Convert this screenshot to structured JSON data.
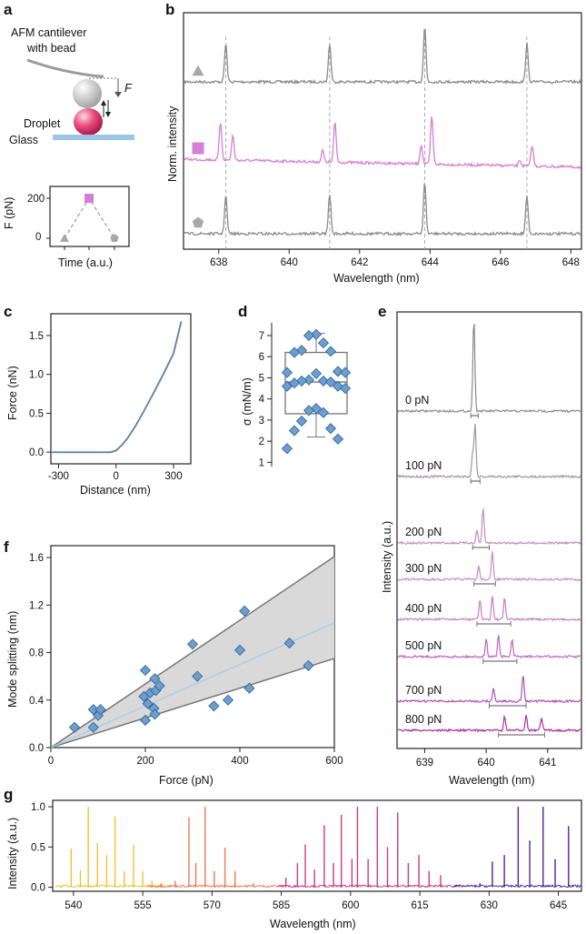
{
  "colors": {
    "gray": "#8a8a8a",
    "magenta": "#d77ed6",
    "bead": "#c9c9c9",
    "droplet": "#e8497a",
    "glass": "#9cc5e8",
    "marker_blue": "#6b9fd0",
    "fit_line": "#a9cdea",
    "band": "#d9d9d9"
  },
  "panel_a": {
    "label": "a",
    "cantilever_label": "AFM cantilever with bead",
    "cantilever_label_line1": "AFM cantilever",
    "cantilever_label_line2": "with bead",
    "force_symbol": "F",
    "droplet_label": "Droplet",
    "glass_label": "Glass",
    "inset": {
      "ylabel": "F (pN)",
      "xlabel": "Time (a.u.)",
      "yticks": [
        "0",
        "200"
      ],
      "points": [
        {
          "marker": "triangle",
          "force": 0
        },
        {
          "marker": "square",
          "force": 200
        },
        {
          "marker": "pentagon",
          "force": 0
        }
      ]
    }
  },
  "panel_b_text": {
    "label": "b",
    "ylabel": "Norm. intensity",
    "xlabel": "Wavelength (nm)",
    "xticks": [
      "638",
      "640",
      "642",
      "644",
      "646",
      "648"
    ]
  },
  "panel_c_text": {
    "label": "c",
    "ylabel": "Force (nN)",
    "xlabel": "Distance (nm)",
    "xticks": [
      "-300",
      "0",
      "300"
    ],
    "yticks": [
      "0.0",
      "0.5",
      "1.0",
      "1.5"
    ]
  },
  "panel_d_text": {
    "label": "d",
    "ylabel": "σ (mN/m)",
    "yticks": [
      "1",
      "2",
      "3",
      "4",
      "5",
      "6",
      "7"
    ]
  },
  "panel_e_text": {
    "label": "e",
    "ylabel": "Intensity (a.u.)",
    "xlabel": "Wavelength (nm)",
    "xticks": [
      "639",
      "640",
      "641"
    ]
  },
  "panel_f_text": {
    "label": "f",
    "ylabel": "Mode splitting (nm)",
    "xlabel": "Force (pN)",
    "xticks": [
      "0",
      "200",
      "400",
      "600"
    ],
    "yticks": [
      "0.0",
      "0.4",
      "0.8",
      "1.2",
      "1.6"
    ]
  },
  "panel_g_text": {
    "label": "g",
    "ylabel": "Intensity (a.u.)",
    "xlabel": "Wavelength (nm)",
    "xticks": [
      "540",
      "555",
      "570",
      "585",
      "600",
      "615",
      "630",
      "645"
    ],
    "yticks": [
      "0.0",
      "0.5",
      "1.0"
    ]
  },
  "chart_data": [
    {
      "panel": "b",
      "type": "line",
      "xlabel": "Wavelength (nm)",
      "ylabel": "Norm. intensity",
      "xlim": [
        637,
        648.3
      ],
      "reference_lines_x": [
        638.2,
        641.15,
        643.85,
        646.75
      ],
      "series": [
        {
          "marker": "triangle",
          "color": "#8a8a8a",
          "peaks": [
            {
              "x": 638.2,
              "h": 1.0
            },
            {
              "x": 641.15,
              "h": 1.0
            },
            {
              "x": 643.85,
              "h": 1.45
            },
            {
              "x": 646.75,
              "h": 1.0
            }
          ]
        },
        {
          "marker": "square",
          "color": "#d77ed6",
          "peaks": [
            {
              "x": 638.05,
              "h": 1.0
            },
            {
              "x": 638.4,
              "h": 0.65
            },
            {
              "x": 640.95,
              "h": 0.3
            },
            {
              "x": 641.3,
              "h": 1.05
            },
            {
              "x": 643.75,
              "h": 0.5
            },
            {
              "x": 644.05,
              "h": 1.25
            },
            {
              "x": 646.55,
              "h": 0.15
            },
            {
              "x": 646.9,
              "h": 0.55
            }
          ]
        },
        {
          "marker": "pentagon",
          "color": "#8a8a8a",
          "peaks": [
            {
              "x": 638.2,
              "h": 1.0
            },
            {
              "x": 641.15,
              "h": 1.05
            },
            {
              "x": 643.85,
              "h": 1.35
            },
            {
              "x": 646.75,
              "h": 1.0
            }
          ]
        }
      ]
    },
    {
      "panel": "c",
      "type": "line",
      "xlabel": "Distance (nm)",
      "ylabel": "Force (nN)",
      "xlim": [
        -340,
        390
      ],
      "ylim": [
        -0.15,
        1.78
      ],
      "x": [
        -340,
        -250,
        -150,
        -80,
        -30,
        0,
        30,
        60,
        100,
        150,
        200,
        250,
        300,
        340
      ],
      "y": [
        0.0,
        0.0,
        0.0,
        0.0,
        0.0,
        0.02,
        0.09,
        0.18,
        0.33,
        0.55,
        0.78,
        1.02,
        1.27,
        1.68
      ]
    },
    {
      "panel": "d",
      "type": "box",
      "ylabel": "σ (mN/m)",
      "ylim": [
        0.8,
        7.6
      ],
      "box": {
        "whisker_low": 2.2,
        "q1": 3.3,
        "median": 4.8,
        "q3": 6.2,
        "whisker_high": 7.1
      },
      "points": [
        7.05,
        7.0,
        6.65,
        6.3,
        6.25,
        6.2,
        5.3,
        5.25,
        5.25,
        5.2,
        4.9,
        4.85,
        4.85,
        4.8,
        4.75,
        4.6,
        4.6,
        4.5,
        3.55,
        3.45,
        3.35,
        2.95,
        2.6,
        2.5,
        2.1,
        1.65
      ]
    },
    {
      "panel": "e",
      "type": "line",
      "xlabel": "Wavelength (nm)",
      "ylabel": "Intensity (a.u.)",
      "xlim": [
        638.55,
        641.55
      ],
      "series": [
        {
          "name": "0 pN",
          "color": "#8a8a8a",
          "span": [
            639.75,
            639.87
          ],
          "peaks": [
            {
              "x": 639.8,
              "h": 1.0
            }
          ]
        },
        {
          "name": "100 pN",
          "color": "#a491a4",
          "span": [
            639.75,
            639.9
          ],
          "peaks": [
            {
              "x": 639.82,
              "h": 0.55
            },
            {
              "x": 639.78,
              "h": 0.25
            }
          ]
        },
        {
          "name": "200 pN",
          "color": "#bf8ebf",
          "span": [
            639.78,
            640.05
          ],
          "peaks": [
            {
              "x": 639.95,
              "h": 0.4
            },
            {
              "x": 639.85,
              "h": 0.15
            }
          ]
        },
        {
          "name": "300 pN",
          "color": "#c88ac8",
          "span": [
            639.8,
            640.15
          ],
          "peaks": [
            {
              "x": 639.88,
              "h": 0.15
            },
            {
              "x": 640.1,
              "h": 0.3
            }
          ]
        },
        {
          "name": "400 pN",
          "color": "#c57cc5",
          "span": [
            639.85,
            640.4
          ],
          "peaks": [
            {
              "x": 639.9,
              "h": 0.2
            },
            {
              "x": 640.1,
              "h": 0.24
            },
            {
              "x": 640.3,
              "h": 0.22
            }
          ]
        },
        {
          "name": "500 pN",
          "color": "#be66be",
          "span": [
            639.95,
            640.5
          ],
          "peaks": [
            {
              "x": 640.0,
              "h": 0.18
            },
            {
              "x": 640.2,
              "h": 0.22
            },
            {
              "x": 640.42,
              "h": 0.17
            }
          ]
        },
        {
          "name": "700 pN",
          "color": "#b24fb2",
          "span": [
            640.05,
            640.65
          ],
          "peaks": [
            {
              "x": 640.12,
              "h": 0.14
            },
            {
              "x": 640.6,
              "h": 0.3
            }
          ]
        },
        {
          "name": "800 pN",
          "color": "#a8339f",
          "span": [
            640.2,
            640.95
          ],
          "peaks": [
            {
              "x": 640.3,
              "h": 0.15
            },
            {
              "x": 640.65,
              "h": 0.18
            },
            {
              "x": 640.9,
              "h": 0.14
            }
          ]
        }
      ]
    },
    {
      "panel": "f",
      "type": "scatter",
      "xlabel": "Force (pN)",
      "ylabel": "Mode splitting (nm)",
      "xlim": [
        0,
        600
      ],
      "ylim": [
        0,
        1.7
      ],
      "fit": {
        "slope": 0.00175
      },
      "band": {
        "upper_slope": 0.00268,
        "lower_slope": 0.00125
      },
      "points": [
        [
          50,
          0.17
        ],
        [
          90,
          0.32
        ],
        [
          90,
          0.17
        ],
        [
          100,
          0.27
        ],
        [
          105,
          0.32
        ],
        [
          200,
          0.65
        ],
        [
          197,
          0.43
        ],
        [
          205,
          0.37
        ],
        [
          200,
          0.23
        ],
        [
          210,
          0.46
        ],
        [
          220,
          0.58
        ],
        [
          218,
          0.33
        ],
        [
          222,
          0.48
        ],
        [
          220,
          0.28
        ],
        [
          230,
          0.52
        ],
        [
          300,
          0.87
        ],
        [
          310,
          0.6
        ],
        [
          345,
          0.35
        ],
        [
          375,
          0.4
        ],
        [
          400,
          0.82
        ],
        [
          410,
          1.15
        ],
        [
          420,
          0.5
        ],
        [
          505,
          0.88
        ],
        [
          545,
          0.69
        ]
      ]
    },
    {
      "panel": "g",
      "type": "line",
      "xlabel": "Wavelength (nm)",
      "ylabel": "Intensity (a.u.)",
      "xlim": [
        535.5,
        650
      ],
      "ylim": [
        -0.05,
        1.08
      ],
      "series": [
        {
          "color": "#f2c12e",
          "range": [
            536,
            560
          ],
          "peaks": [
            [
              539.5,
              0.48
            ],
            [
              541.5,
              0.21
            ],
            [
              543.2,
              1.0
            ],
            [
              545.2,
              0.55
            ],
            [
              547.2,
              0.4
            ],
            [
              549.0,
              0.88
            ],
            [
              551.0,
              0.2
            ],
            [
              553.0,
              0.53
            ],
            [
              555.0,
              0.2
            ],
            [
              557.0,
              0.08
            ]
          ]
        },
        {
          "color": "#ec7a52",
          "range": [
            556,
            586
          ],
          "peaks": [
            [
              559,
              0.05
            ],
            [
              562,
              0.08
            ],
            [
              565,
              0.87
            ],
            [
              566.5,
              0.3
            ],
            [
              568.5,
              1.0
            ],
            [
              570.5,
              0.2
            ],
            [
              572.8,
              0.49
            ],
            [
              575,
              0.2
            ],
            [
              579,
              0.05
            ]
          ]
        },
        {
          "color": "#c63b85",
          "range": [
            584,
            624
          ],
          "peaks": [
            [
              586,
              0.12
            ],
            [
              588.5,
              0.3
            ],
            [
              590.2,
              0.53
            ],
            [
              592.2,
              0.22
            ],
            [
              594.3,
              0.77
            ],
            [
              596.3,
              0.3
            ],
            [
              598.0,
              0.9
            ],
            [
              600.3,
              0.35
            ],
            [
              601.5,
              1.0
            ],
            [
              603.8,
              0.35
            ],
            [
              605.8,
              1.0
            ],
            [
              608.0,
              0.5
            ],
            [
              610.2,
              0.93
            ],
            [
              612.5,
              0.3
            ],
            [
              614.8,
              0.4
            ],
            [
              617.0,
              0.2
            ],
            [
              619.5,
              0.15
            ]
          ]
        },
        {
          "color": "#4a2598",
          "range": [
            622,
            650
          ],
          "peaks": [
            [
              628,
              0.05
            ],
            [
              630.7,
              0.32
            ],
            [
              633.3,
              0.4
            ],
            [
              636.3,
              1.0
            ],
            [
              638.8,
              0.58
            ],
            [
              641.7,
              1.0
            ],
            [
              644.3,
              0.35
            ],
            [
              647.2,
              0.76
            ]
          ]
        }
      ]
    }
  ]
}
